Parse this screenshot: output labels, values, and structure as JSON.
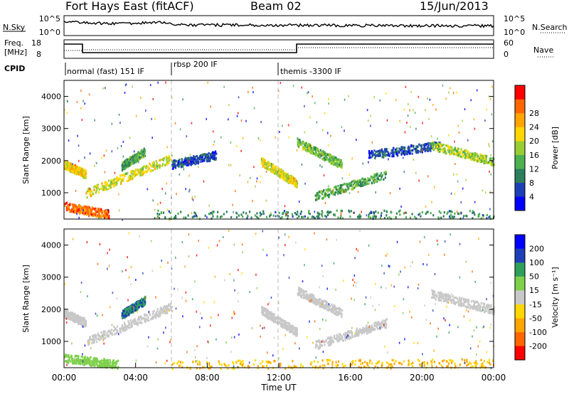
{
  "title": {
    "station": "Fort Hays East (fitACF)",
    "beam": "Beam 02",
    "date": "15/Jun/2013"
  },
  "noise_panel": {
    "left_label": "N.Sky",
    "right_label": "N.Search",
    "y_ticks": [
      "10^5",
      "10^0"
    ]
  },
  "freq_panel": {
    "left_label_line1": "Freq.",
    "left_label_line2": "[MHz]",
    "right_label": "Nave",
    "left_ticks": [
      "18",
      "8"
    ],
    "right_ticks": [
      "60",
      "0"
    ]
  },
  "cpid_panel": {
    "label": "CPID",
    "modes": [
      {
        "name": "normal (fast) 151 IF",
        "start_hour": 0
      },
      {
        "name": "rbsp 200 IF",
        "start_hour": 6
      },
      {
        "name": "themis -3300 IF",
        "start_hour": 12
      }
    ]
  },
  "x_axis": {
    "label": "Time UT",
    "ticks": [
      "00:00",
      "04:00",
      "08:00",
      "12:00",
      "16:00",
      "20:00",
      "00:00"
    ]
  },
  "chart_data": [
    {
      "type": "heatmap",
      "name": "power",
      "ylabel": "Slant Range [km]",
      "yticks": [
        "1000",
        "2000",
        "3000",
        "4000"
      ],
      "ylim": [
        180,
        4500
      ],
      "xlim_hours": [
        0,
        24
      ],
      "colorbar": {
        "label": "Power [dB]",
        "ticks": [
          "4",
          "8",
          "12",
          "16",
          "20",
          "24",
          "28"
        ],
        "colors": [
          "#0000ff",
          "#1f3fb8",
          "#2e7d5b",
          "#4caf50",
          "#9acd32",
          "#ffd700",
          "#ffa500",
          "#ff6600",
          "#ff0000"
        ]
      },
      "bands": [
        {
          "from": [
            0,
            1900
          ],
          "to": [
            1.2,
            1600
          ],
          "power_db": 20
        },
        {
          "from": [
            1.2,
            1000
          ],
          "to": [
            6,
            2100
          ],
          "power_db": 18
        },
        {
          "from": [
            0,
            600
          ],
          "to": [
            2.5,
            350
          ],
          "power_db": 26
        },
        {
          "from": [
            3.2,
            1850
          ],
          "to": [
            4.5,
            2300
          ],
          "power_db": 12
        },
        {
          "from": [
            6,
            1900
          ],
          "to": [
            8.5,
            2200
          ],
          "power_db": 6
        },
        {
          "from": [
            11,
            2000
          ],
          "to": [
            13,
            1300
          ],
          "power_db": 18
        },
        {
          "from": [
            13,
            2600
          ],
          "to": [
            15.5,
            1900
          ],
          "power_db": 14
        },
        {
          "from": [
            14,
            900
          ],
          "to": [
            18,
            1600
          ],
          "power_db": 12
        },
        {
          "from": [
            17,
            2200
          ],
          "to": [
            21,
            2500
          ],
          "power_db": 6
        },
        {
          "from": [
            20.5,
            2500
          ],
          "to": [
            24,
            2000
          ],
          "power_db": 16
        },
        {
          "from": [
            5,
            350
          ],
          "to": [
            24,
            350
          ],
          "power_db": 10
        }
      ]
    },
    {
      "type": "heatmap",
      "name": "velocity",
      "ylabel": "Slant Range [km]",
      "yticks": [
        "1000",
        "2000",
        "3000",
        "4000"
      ],
      "ylim": [
        180,
        4500
      ],
      "xlim_hours": [
        0,
        24
      ],
      "colorbar": {
        "label": "Velocity [m s⁻¹]",
        "ticks": [
          "-200",
          "-100",
          "-50",
          "-15",
          "15",
          "50",
          "100",
          "200"
        ],
        "colors": [
          "#ff0000",
          "#ff6600",
          "#ffa500",
          "#ffd700",
          "#c8c8c8",
          "#7fd04b",
          "#2ea05a",
          "#1f3fb8",
          "#0000ff"
        ]
      },
      "bands": [
        {
          "from": [
            0,
            1900
          ],
          "to": [
            1.2,
            1600
          ],
          "velocity": 0
        },
        {
          "from": [
            1.2,
            1000
          ],
          "to": [
            6,
            2100
          ],
          "velocity": 0
        },
        {
          "from": [
            0,
            500
          ],
          "to": [
            3,
            300
          ],
          "velocity": 30
        },
        {
          "from": [
            3.2,
            1850
          ],
          "to": [
            4.5,
            2300
          ],
          "velocity": 100
        },
        {
          "from": [
            11,
            2000
          ],
          "to": [
            13,
            1300
          ],
          "velocity": 0
        },
        {
          "from": [
            13,
            2600
          ],
          "to": [
            15.5,
            1900
          ],
          "velocity": 0
        },
        {
          "from": [
            14,
            900
          ],
          "to": [
            18,
            1600
          ],
          "velocity": 0
        },
        {
          "from": [
            20.5,
            2500
          ],
          "to": [
            24,
            2000
          ],
          "velocity": 0
        },
        {
          "from": [
            6,
            300
          ],
          "to": [
            24,
            350
          ],
          "velocity": -50
        }
      ]
    }
  ]
}
